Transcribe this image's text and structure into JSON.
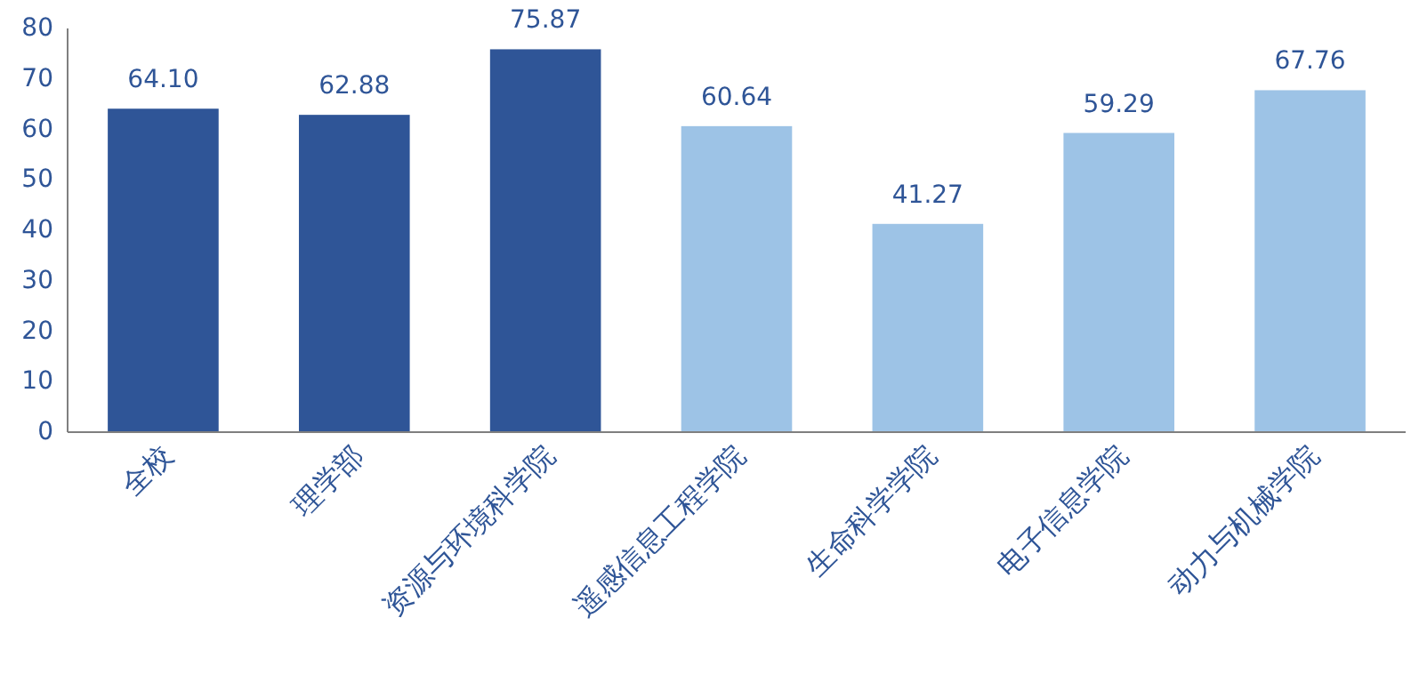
{
  "chart_data": {
    "type": "bar",
    "categories": [
      "全校",
      "理学部",
      "资源与环境科学院",
      "遥感信息工程学院",
      "生命科学学院",
      "电子信息学院",
      "动力与机械学院"
    ],
    "values": [
      64.1,
      62.88,
      75.87,
      60.64,
      41.27,
      59.29,
      67.76
    ],
    "colors": [
      "#2f5597",
      "#2f5597",
      "#2f5597",
      "#9dc3e6",
      "#9dc3e6",
      "#9dc3e6",
      "#9dc3e6"
    ],
    "value_labels": [
      "64.10",
      "62.88",
      "75.87",
      "60.64",
      "41.27",
      "59.29",
      "67.76"
    ],
    "ylim": [
      0,
      80
    ],
    "yticks": [
      0,
      10,
      20,
      30,
      40,
      50,
      60,
      70,
      80
    ],
    "data_labels": true
  }
}
